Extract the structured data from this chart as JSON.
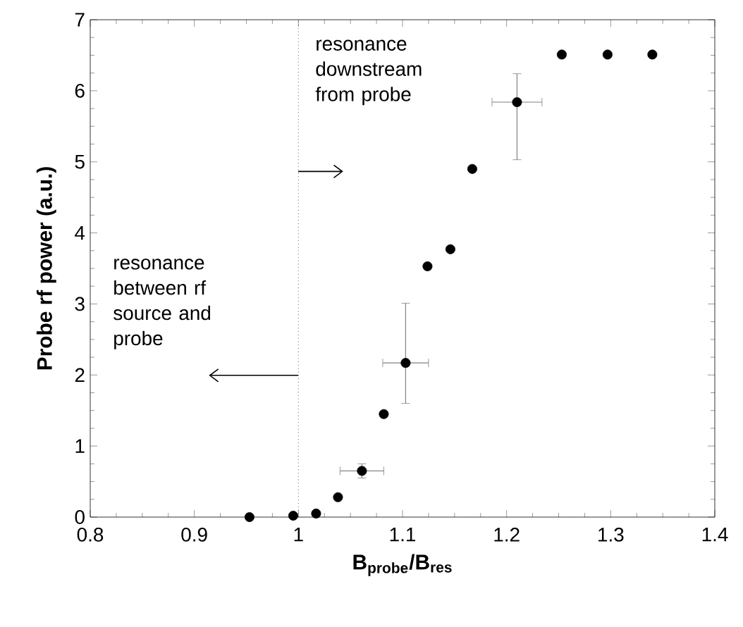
{
  "chart_data": {
    "type": "scatter",
    "xlabel": "B$_{probe}$/B$_{res}$",
    "ylabel": "Probe rf power (a.u.)",
    "x": [
      0.953,
      0.995,
      1.017,
      1.038,
      1.061,
      1.082,
      1.103,
      1.124,
      1.146,
      1.167,
      1.21,
      1.253,
      1.297,
      1.34
    ],
    "series": [
      {
        "color": "#000000",
        "values": [
          0,
          0.02,
          0.05,
          0.28,
          0.65,
          1.45,
          2.17,
          3.53,
          3.77,
          4.9,
          5.84,
          6.51,
          6.51,
          6.51
        ],
        "errors": [
          null,
          null,
          null,
          null,
          0.1,
          null,
          [
            1.6,
            3.01
          ],
          null,
          null,
          null,
          [
            5.03,
            6.24
          ],
          null,
          null,
          null
        ],
        "xerrors": [
          null,
          null,
          null,
          null,
          0.021,
          null,
          0.022,
          null,
          null,
          null,
          0.024,
          null,
          null,
          null
        ]
      }
    ],
    "marker": "circle",
    "xlim": [
      0.8,
      1.4
    ],
    "ylim": [
      0,
      7
    ],
    "xticks": [
      0.8,
      0.9,
      1,
      1.1,
      1.2,
      1.3,
      1.4
    ],
    "yticks": [
      0,
      1,
      2,
      3,
      4,
      5,
      6,
      7
    ],
    "ref_lines": [
      {
        "axis": "x",
        "value": 1,
        "line_style": "dotted",
        "color": "#000000"
      }
    ],
    "annotations": [
      "resonance downstream from probe",
      "resonance between rf source and probe"
    ],
    "legend": false,
    "grid": false
  }
}
